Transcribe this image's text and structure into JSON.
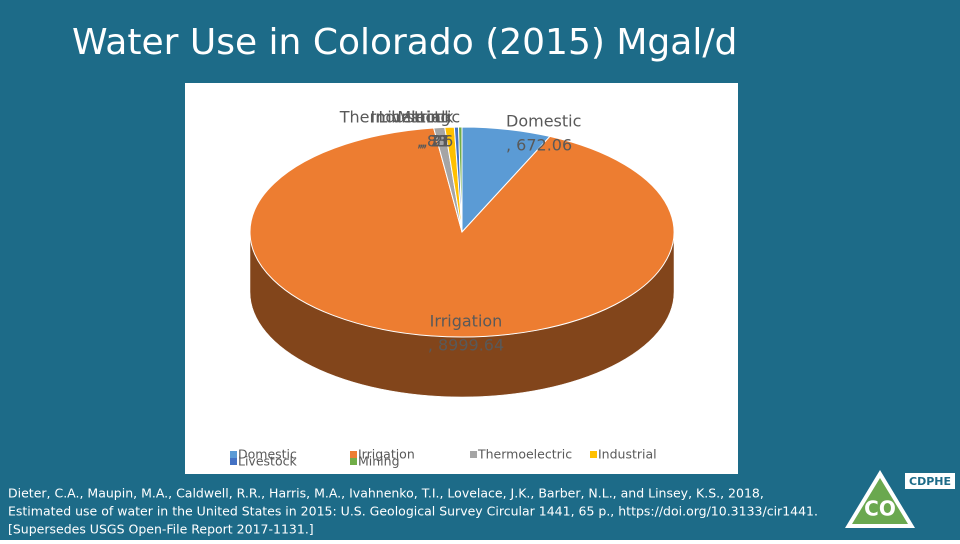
{
  "chart_data": {
    "type": "pie3d",
    "title": "Water Use in Colorado (2015) Mgal/d",
    "categories": [
      "Domestic",
      "Irrigation",
      "Thermoelectric",
      "Industrial",
      "Livestock",
      "Mining"
    ],
    "values": [
      672.06,
      8999.64,
      83,
      71,
      31,
      26
    ],
    "value_labels": [
      ", 672.06",
      ", 8999.64",
      ", 83",
      ", 71",
      ", 31",
      ", 26"
    ],
    "colors": [
      "#5b9bd5",
      "#ed7d31",
      "#a5a5a5",
      "#ffc000",
      "#4472c4",
      "#70ad47"
    ],
    "legend": "bottom"
  },
  "footnote": [
    "Dieter, C.A., Maupin, M.A., Caldwell, R.R., Harris, M.A., Ivahnenko, T.I., Lovelace, J.K., Barber, N.L., and Linsey, K.S., 2018,",
    "Estimated use of water in the United States in 2015: U.S. Geological Survey Circular 1441, 65 p., https://doi.org/10.3133/cir1441.",
    "[Supersedes USGS Open-File Report 2017-1131.]"
  ],
  "logo": {
    "agency": "CDPHE",
    "state": "CO"
  }
}
